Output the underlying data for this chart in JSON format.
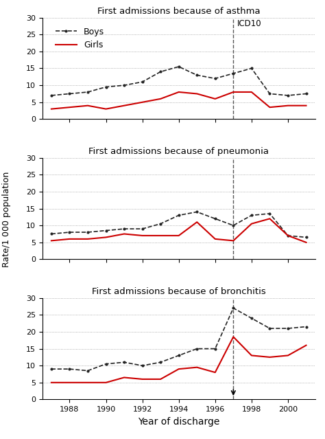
{
  "icd10_year": 1997,
  "vline_color": "#555555",
  "boys_color": "#222222",
  "girls_color": "#cc0000",
  "ylabel": "Rate/1 000 population",
  "xlabel": "Year of discharge",
  "ylim": [
    0,
    30
  ],
  "yticks": [
    0,
    5,
    10,
    15,
    20,
    25,
    30
  ],
  "xticks": [
    1988,
    1990,
    1992,
    1994,
    1996,
    1998,
    2000
  ],
  "xlim": [
    1986.5,
    2001.5
  ],
  "panels": [
    {
      "title": "First admissions because of asthma",
      "show_legend": true,
      "show_icd10_label": true,
      "show_arrow": false,
      "years": [
        1987,
        1988,
        1989,
        1990,
        1991,
        1992,
        1993,
        1994,
        1995,
        1996,
        1997,
        1998,
        1999,
        2000,
        2001
      ],
      "boys": [
        7,
        7.5,
        8,
        9.5,
        10,
        11,
        14,
        15.5,
        13,
        12,
        13.5,
        15,
        7.5,
        7,
        7.5
      ],
      "girls": [
        3,
        3.5,
        4,
        3,
        4,
        5,
        6,
        8,
        7.5,
        6,
        8,
        8,
        3.5,
        4,
        4
      ]
    },
    {
      "title": "First admissions because of pneumonia",
      "show_legend": false,
      "show_icd10_label": false,
      "show_arrow": false,
      "years": [
        1987,
        1988,
        1989,
        1990,
        1991,
        1992,
        1993,
        1994,
        1995,
        1996,
        1997,
        1998,
        1999,
        2000,
        2001
      ],
      "boys": [
        7.5,
        8,
        8,
        8.5,
        9,
        9,
        10.5,
        13,
        14,
        12,
        10,
        13,
        13.5,
        7,
        6.5
      ],
      "girls": [
        5.5,
        6,
        6,
        6.5,
        7.5,
        7,
        7,
        7,
        11,
        6,
        5.5,
        10.5,
        12,
        7,
        5
      ]
    },
    {
      "title": "First admissions because of bronchitis",
      "show_legend": false,
      "show_icd10_label": false,
      "show_arrow": true,
      "years": [
        1987,
        1988,
        1989,
        1990,
        1991,
        1992,
        1993,
        1994,
        1995,
        1996,
        1997,
        1998,
        1999,
        2000,
        2001
      ],
      "boys": [
        9,
        9,
        8.5,
        10.5,
        11,
        10,
        11,
        13,
        15,
        15,
        27,
        24,
        21,
        21,
        21.5
      ],
      "girls": [
        5,
        5,
        5,
        5,
        6.5,
        6,
        6,
        9,
        9.5,
        8,
        18.5,
        13,
        12.5,
        13,
        16
      ]
    }
  ]
}
